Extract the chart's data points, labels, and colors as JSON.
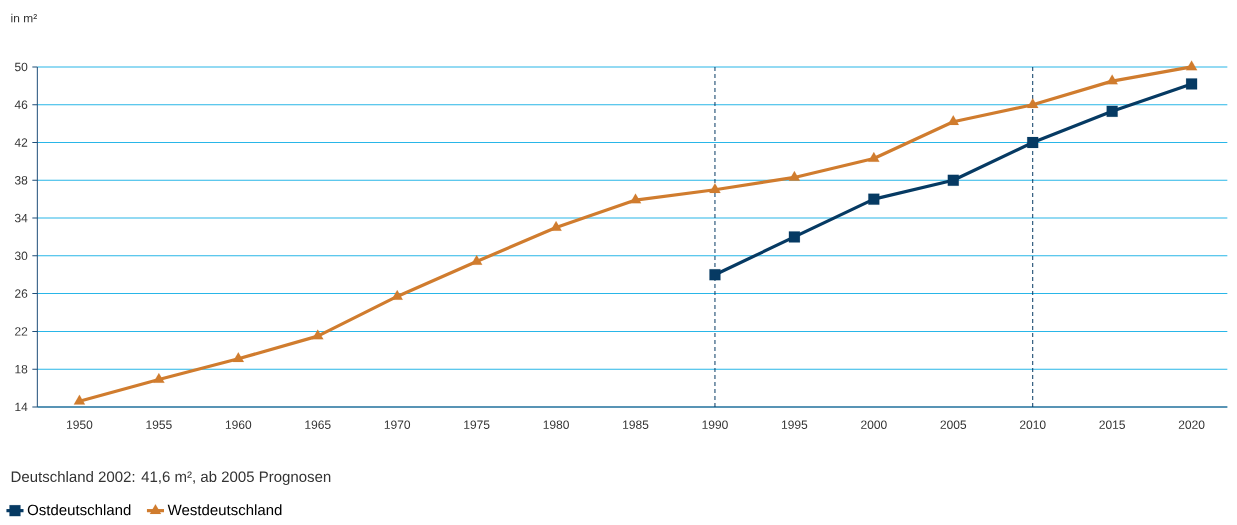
{
  "chart_data": {
    "type": "line",
    "ylabel": "in m²",
    "categories": [
      "1950",
      "1955",
      "1960",
      "1965",
      "1970",
      "1975",
      "1980",
      "1985",
      "1990",
      "1995",
      "2000",
      "2005",
      "2010",
      "2015",
      "2020"
    ],
    "series": [
      {
        "name": "Ostdeutschland",
        "color": "#063a63",
        "marker": "square",
        "values": [
          null,
          null,
          null,
          null,
          null,
          null,
          null,
          null,
          28,
          32,
          36,
          38,
          42,
          45.3,
          48.2
        ]
      },
      {
        "name": "Westdeutschland",
        "color": "#d07c2e",
        "marker": "triangle",
        "values": [
          14.6,
          16.9,
          19.1,
          21.5,
          25.7,
          29.4,
          33,
          35.9,
          37,
          38.3,
          40.3,
          44.2,
          46,
          48.5,
          50
        ]
      }
    ],
    "ylim": [
      14,
      50
    ],
    "yticks": [
      14,
      18,
      22,
      26,
      30,
      34,
      38,
      42,
      46,
      50
    ],
    "grid": "y",
    "legend": "bottom left",
    "ref_lines": [
      {
        "axis": "x",
        "value": "1990",
        "color": "#063a63",
        "line_style": "dashed"
      },
      {
        "axis": "x",
        "value": "2010",
        "color": "#063a63",
        "line_style": "dashed"
      }
    ],
    "annotations": [
      "Deutschland 2002: 41,6 m², ab 2005 Prognosen"
    ]
  }
}
